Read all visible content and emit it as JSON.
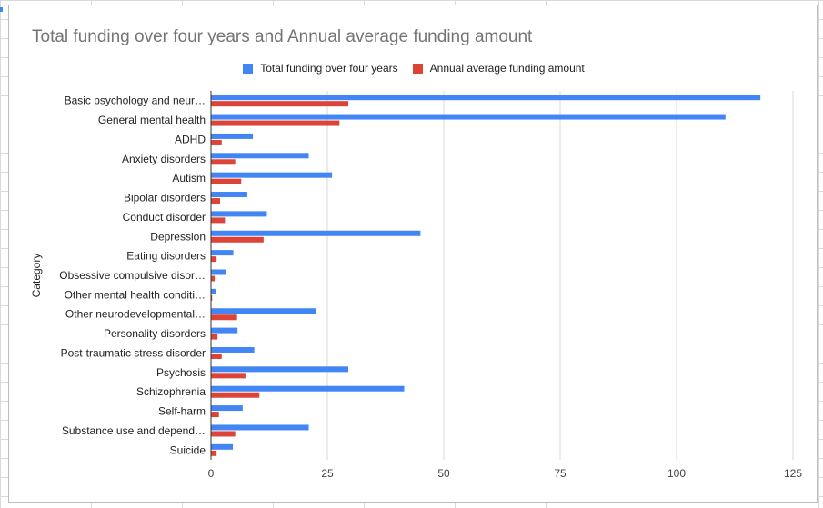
{
  "chart_data": {
    "type": "bar",
    "orientation": "horizontal",
    "title": "Total funding over four years and Annual average funding amount",
    "xlabel": "",
    "ylabel": "Category",
    "xlim": [
      0,
      125
    ],
    "xticks": [
      0,
      25,
      50,
      75,
      100,
      125
    ],
    "grid": true,
    "legend_position": "top",
    "categories": [
      "Basic psychology and neur…",
      "General mental health",
      "ADHD",
      "Anxiety disorders",
      "Autism",
      "Bipolar disorders",
      "Conduct disorder",
      "Depression",
      "Eating disorders",
      "Obsessive compulsive disor…",
      "Other mental health conditi…",
      "Other neurodevelopmental…",
      "Personality disorders",
      "Post-traumatic stress disorder",
      "Psychosis",
      "Schizophrenia",
      "Self-harm",
      "Substance use and depend…",
      "Suicide"
    ],
    "series": [
      {
        "name": "Total funding over four years",
        "color": "#4285f4",
        "values": [
          118,
          110.5,
          9,
          21,
          26,
          7.8,
          12,
          45,
          4.8,
          3.2,
          1,
          22.5,
          5.7,
          9.3,
          29.5,
          41.5,
          6.8,
          21,
          4.7
        ]
      },
      {
        "name": "Annual average funding amount",
        "color": "#db4437",
        "values": [
          29.5,
          27.6,
          2.3,
          5.2,
          6.5,
          1.95,
          3,
          11.3,
          1.2,
          0.8,
          0.25,
          5.6,
          1.4,
          2.3,
          7.4,
          10.4,
          1.7,
          5.2,
          1.2
        ]
      }
    ]
  }
}
